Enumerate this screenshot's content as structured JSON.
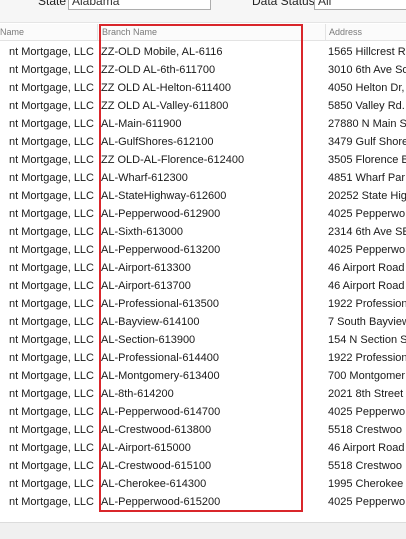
{
  "filters": {
    "state_label": "State",
    "state_value": "Alabama",
    "data_status_label": "Data Status",
    "data_status_value": "All"
  },
  "grid": {
    "columns": [
      "Name",
      "Branch Name",
      "Address"
    ],
    "rows": [
      {
        "lender": "nt Mortgage, LLC",
        "branch": "ZZ-OLD Mobile, AL-6116",
        "address": "1565 Hillcrest R"
      },
      {
        "lender": "nt Mortgage, LLC",
        "branch": "ZZ-OLD AL-6th-611700",
        "address": "3010 6th Ave So"
      },
      {
        "lender": "nt Mortgage, LLC",
        "branch": "ZZ OLD AL-Helton-611400",
        "address": "4050 Helton Dr,"
      },
      {
        "lender": "nt Mortgage, LLC",
        "branch": "ZZ OLD AL-Valley-611800",
        "address": "5850 Valley Rd."
      },
      {
        "lender": "nt Mortgage, LLC",
        "branch": "AL-Main-611900",
        "address": "27880 N Main St"
      },
      {
        "lender": "nt Mortgage, LLC",
        "branch": "AL-GulfShores-612100",
        "address": "3479 Gulf Shore"
      },
      {
        "lender": "nt Mortgage, LLC",
        "branch": "ZZ OLD-AL-Florence-612400",
        "address": "3505 Florence B"
      },
      {
        "lender": "nt Mortgage, LLC",
        "branch": "AL-Wharf-612300",
        "address": "4851 Wharf Par"
      },
      {
        "lender": "nt Mortgage, LLC",
        "branch": "AL-StateHighway-612600",
        "address": "20252 State Hig"
      },
      {
        "lender": "nt Mortgage, LLC",
        "branch": "AL-Pepperwood-612900",
        "address": "4025 Pepperwo"
      },
      {
        "lender": "nt Mortgage, LLC",
        "branch": "AL-Sixth-613000",
        "address": "2314 6th Ave SE"
      },
      {
        "lender": "nt Mortgage, LLC",
        "branch": "AL-Pepperwood-613200",
        "address": "4025 Pepperwo"
      },
      {
        "lender": "nt Mortgage, LLC",
        "branch": "AL-Airport-613300",
        "address": "46 Airport Road"
      },
      {
        "lender": "nt Mortgage, LLC",
        "branch": "AL-Airport-613700",
        "address": "46 Airport Road"
      },
      {
        "lender": "nt Mortgage, LLC",
        "branch": "AL-Professional-613500",
        "address": "1922 Profession"
      },
      {
        "lender": "nt Mortgage, LLC",
        "branch": "AL-Bayview-614100",
        "address": "7 South Bayview"
      },
      {
        "lender": "nt Mortgage, LLC",
        "branch": "AL-Section-613900",
        "address": "154 N Section S"
      },
      {
        "lender": "nt Mortgage, LLC",
        "branch": "AL-Professional-614400",
        "address": "1922 Profession"
      },
      {
        "lender": "nt Mortgage, LLC",
        "branch": "AL-Montgomery-613400",
        "address": "700 Montgomer"
      },
      {
        "lender": "nt Mortgage, LLC",
        "branch": "AL-8th-614200",
        "address": "2021 8th Street"
      },
      {
        "lender": "nt Mortgage, LLC",
        "branch": "AL-Pepperwood-614700",
        "address": "4025 Pepperwo"
      },
      {
        "lender": "nt Mortgage, LLC",
        "branch": "AL-Crestwood-613800",
        "address": "5518 Crestwoo"
      },
      {
        "lender": "nt Mortgage, LLC",
        "branch": "AL-Airport-615000",
        "address": "46 Airport Road"
      },
      {
        "lender": "nt Mortgage, LLC",
        "branch": "AL-Crestwood-615100",
        "address": "5518 Crestwoo"
      },
      {
        "lender": "nt Mortgage, LLC",
        "branch": "AL-Cherokee-614300",
        "address": "1995 Cherokee"
      },
      {
        "lender": "nt Mortgage, LLC",
        "branch": "AL-Pepperwood-615200",
        "address": "4025 Pepperwo"
      }
    ]
  },
  "colors": {
    "highlight": "#d9262b",
    "header_text": "#7a7a7a"
  }
}
